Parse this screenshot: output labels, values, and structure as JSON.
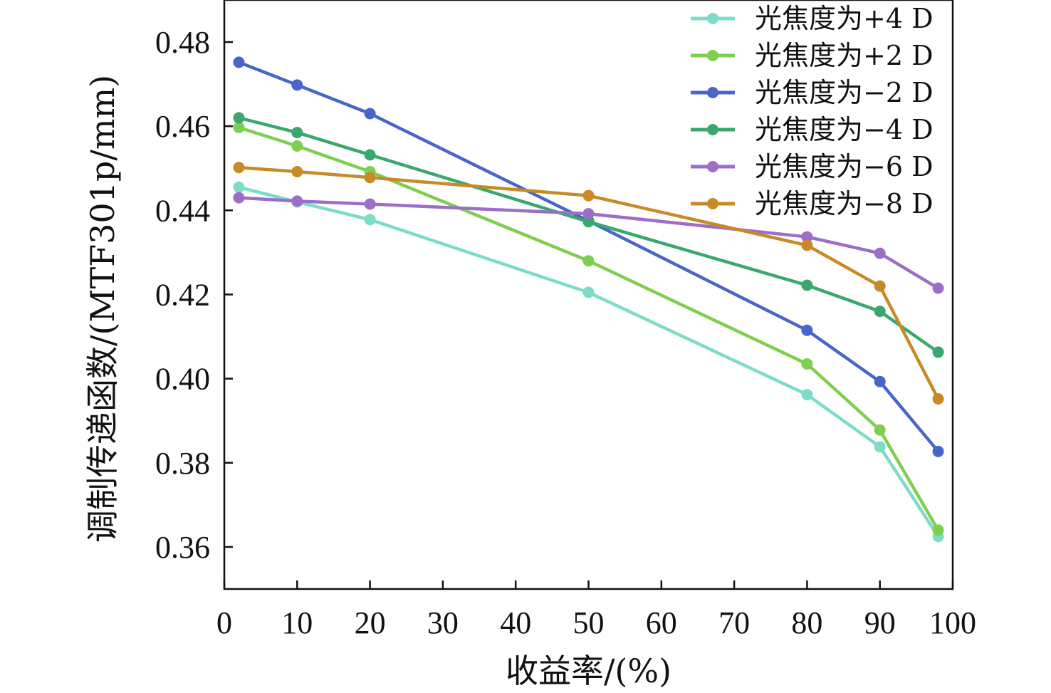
{
  "chart_data": {
    "type": "line",
    "title": "",
    "xlabel": "收益率/(%)",
    "ylabel": "调制传递函数/(MTF301p/mm)",
    "xlim": [
      0,
      100
    ],
    "ylim": [
      0.35,
      0.49
    ],
    "x_ticks": [
      0,
      10,
      20,
      30,
      40,
      50,
      60,
      70,
      80,
      90,
      100
    ],
    "x_tick_labels": [
      "0",
      "10",
      "20",
      "30",
      "40",
      "50",
      "60",
      "70",
      "80",
      "90",
      "100"
    ],
    "y_ticks": [
      0.36,
      0.38,
      0.4,
      0.42,
      0.44,
      0.46,
      0.48
    ],
    "y_tick_labels": [
      "0.36",
      "0.38",
      "0.40",
      "0.42",
      "0.44",
      "0.46",
      "0.48"
    ],
    "grid": false,
    "legend_position": "top-right",
    "x": [
      2,
      10,
      20,
      50,
      80,
      90,
      98
    ],
    "series": [
      {
        "name": "光焦度为+4 D",
        "color": "#7ddcc8",
        "values": [
          0.4455,
          0.442,
          0.4378,
          0.4205,
          0.3962,
          0.3838,
          0.3625
        ]
      },
      {
        "name": "光焦度为+2 D",
        "color": "#7fcf4f",
        "values": [
          0.4597,
          0.4553,
          0.4492,
          0.428,
          0.4035,
          0.3878,
          0.364
        ]
      },
      {
        "name": "光焦度为−2 D",
        "color": "#4766c8",
        "values": [
          0.4752,
          0.4698,
          0.463,
          0.4375,
          0.4115,
          0.3993,
          0.3827
        ]
      },
      {
        "name": "光焦度为−4 D",
        "color": "#3aa86e",
        "values": [
          0.462,
          0.4585,
          0.4532,
          0.4373,
          0.4222,
          0.416,
          0.4063
        ]
      },
      {
        "name": "光焦度为−6 D",
        "color": "#9c6ec8",
        "values": [
          0.443,
          0.4422,
          0.4415,
          0.4392,
          0.4337,
          0.4298,
          0.4215
        ]
      },
      {
        "name": "光焦度为−8 D",
        "color": "#c88a28",
        "values": [
          0.4502,
          0.4492,
          0.4478,
          0.4435,
          0.4317,
          0.422,
          0.3952
        ]
      }
    ]
  }
}
